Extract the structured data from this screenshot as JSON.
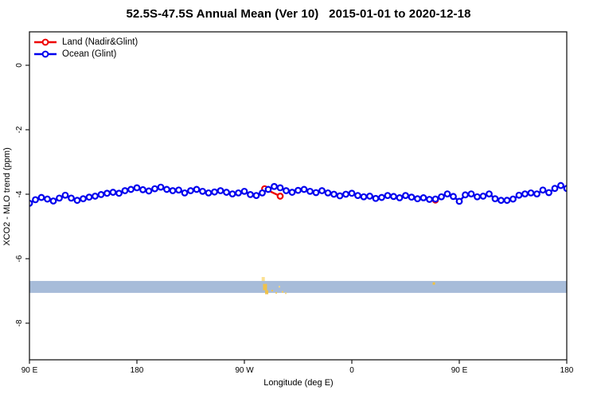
{
  "title": "52.5S-47.5S Annual Mean (Ver 10)   2015-01-01 to 2020-12-18",
  "legend": {
    "items": [
      {
        "label": "Land (Nadir&Glint)",
        "color": "#ee0000"
      },
      {
        "label": "Ocean (Glint)",
        "color": "#0000ee"
      }
    ]
  },
  "chart_data": {
    "type": "line",
    "title": "52.5S-47.5S Annual Mean (Ver 10)   2015-01-01 to 2020-12-18",
    "xlabel": "Longitude (deg E)",
    "ylabel": "XCO2 - MLO trend (ppm)",
    "x_axis_note": "longitude axis starts at 90E and wraps eastward around the globe to 180",
    "xlim_unwrapped": [
      90,
      540
    ],
    "ylim": [
      -9.1,
      0.9
    ],
    "x_ticks": [
      {
        "pos": 90,
        "label": "90 E"
      },
      {
        "pos": 180,
        "label": "180"
      },
      {
        "pos": 270,
        "label": "90 W"
      },
      {
        "pos": 360,
        "label": "0"
      },
      {
        "pos": 450,
        "label": "90 E"
      },
      {
        "pos": 540,
        "label": "180"
      }
    ],
    "y_ticks": [
      {
        "pos": 0,
        "label": "0"
      },
      {
        "pos": -2,
        "label": "-2"
      },
      {
        "pos": -4,
        "label": "-4"
      },
      {
        "pos": -6,
        "label": "-6"
      },
      {
        "pos": -8,
        "label": "-8"
      }
    ],
    "ocean": {
      "name": "Ocean (Glint)",
      "color": "#0000ee",
      "x_start": 90,
      "x_step": 5,
      "values": [
        -4.28,
        -4.17,
        -4.1,
        -4.15,
        -4.21,
        -4.12,
        -4.03,
        -4.12,
        -4.19,
        -4.14,
        -4.09,
        -4.06,
        -4.01,
        -3.97,
        -3.94,
        -3.97,
        -3.89,
        -3.85,
        -3.8,
        -3.86,
        -3.9,
        -3.83,
        -3.78,
        -3.85,
        -3.89,
        -3.87,
        -3.96,
        -3.89,
        -3.85,
        -3.91,
        -3.96,
        -3.93,
        -3.89,
        -3.94,
        -3.99,
        -3.96,
        -3.91,
        -4.01,
        -4.04,
        -3.96,
        -3.85,
        -3.76,
        -3.8,
        -3.89,
        -3.94,
        -3.88,
        -3.85,
        -3.91,
        -3.95,
        -3.89,
        -3.96,
        -4.0,
        -4.05,
        -4.0,
        -3.97,
        -4.04,
        -4.08,
        -4.06,
        -4.13,
        -4.1,
        -4.04,
        -4.07,
        -4.11,
        -4.04,
        -4.09,
        -4.14,
        -4.11,
        -4.16,
        -4.15,
        -4.08,
        -3.99,
        -4.07,
        -4.22,
        -4.02,
        -3.99,
        -4.08,
        -4.06,
        -3.99,
        -4.14,
        -4.19,
        -4.19,
        -4.15,
        -4.03,
        -3.99,
        -3.96,
        -3.99,
        -3.87,
        -3.95,
        -3.82,
        -3.73,
        -3.82
      ]
    },
    "land": {
      "name": "Land (Nadir&Glint)",
      "color": "#ee0000",
      "segments": [
        [
          [
            287,
            -3.83
          ],
          [
            300,
            -4.06
          ]
        ],
        [
          [
            430,
            -4.18
          ]
        ]
      ]
    },
    "band": {
      "top": -6.69,
      "bottom": -7.06,
      "color": "#a7bcd9"
    },
    "yellow_marks": [
      [
        285.8,
        -6.63,
        4,
        5,
        "#fbe193"
      ],
      [
        287.3,
        -6.88,
        5,
        8,
        "#f0c24a"
      ],
      [
        288.7,
        -7.04,
        4,
        5,
        "#f0c24a"
      ],
      [
        293.3,
        -6.99,
        2,
        2,
        "#f0c24a"
      ],
      [
        296.7,
        -7.06,
        2,
        2,
        "#f3cc61"
      ],
      [
        299.3,
        -6.87,
        2,
        2,
        "#f7d87e"
      ],
      [
        302.0,
        -7.03,
        2,
        2,
        "#f3cc61"
      ],
      [
        304.7,
        -7.07,
        2,
        2,
        "#f7d87e"
      ],
      [
        428.7,
        -6.77,
        3,
        3,
        "#f2c23f"
      ]
    ],
    "style": {
      "axis_color": "#1a1a1a"
    }
  }
}
